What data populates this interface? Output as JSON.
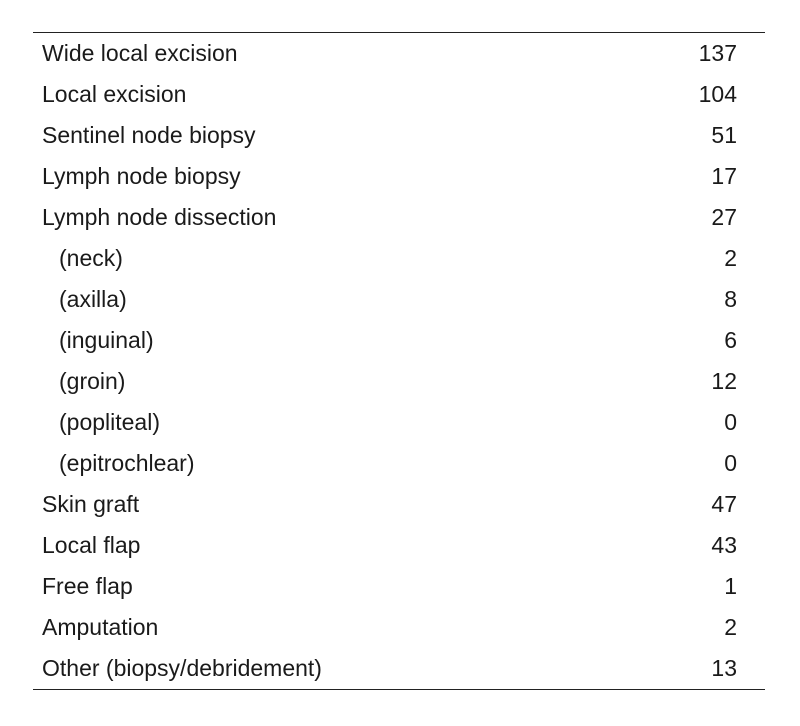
{
  "table": {
    "rows": [
      {
        "label": "Wide local excision",
        "value": "137",
        "indent": false
      },
      {
        "label": "Local excision",
        "value": "104",
        "indent": false
      },
      {
        "label": "Sentinel node biopsy",
        "value": "51",
        "indent": false
      },
      {
        "label": "Lymph node biopsy",
        "value": "17",
        "indent": false
      },
      {
        "label": "Lymph node dissection",
        "value": "27",
        "indent": false
      },
      {
        "label": "(neck)",
        "value": "2",
        "indent": true
      },
      {
        "label": "(axilla)",
        "value": "8",
        "indent": true
      },
      {
        "label": "(inguinal)",
        "value": "6",
        "indent": true
      },
      {
        "label": "(groin)",
        "value": "12",
        "indent": true
      },
      {
        "label": "(popliteal)",
        "value": "0",
        "indent": true
      },
      {
        "label": "(epitrochlear)",
        "value": "0",
        "indent": true
      },
      {
        "label": "Skin graft",
        "value": "47",
        "indent": false
      },
      {
        "label": "Local flap",
        "value": "43",
        "indent": false
      },
      {
        "label": "Free flap",
        "value": "1",
        "indent": false
      },
      {
        "label": "Amputation",
        "value": "2",
        "indent": false
      },
      {
        "label": "Other (biopsy/debridement)",
        "value": "13",
        "indent": false
      }
    ]
  }
}
